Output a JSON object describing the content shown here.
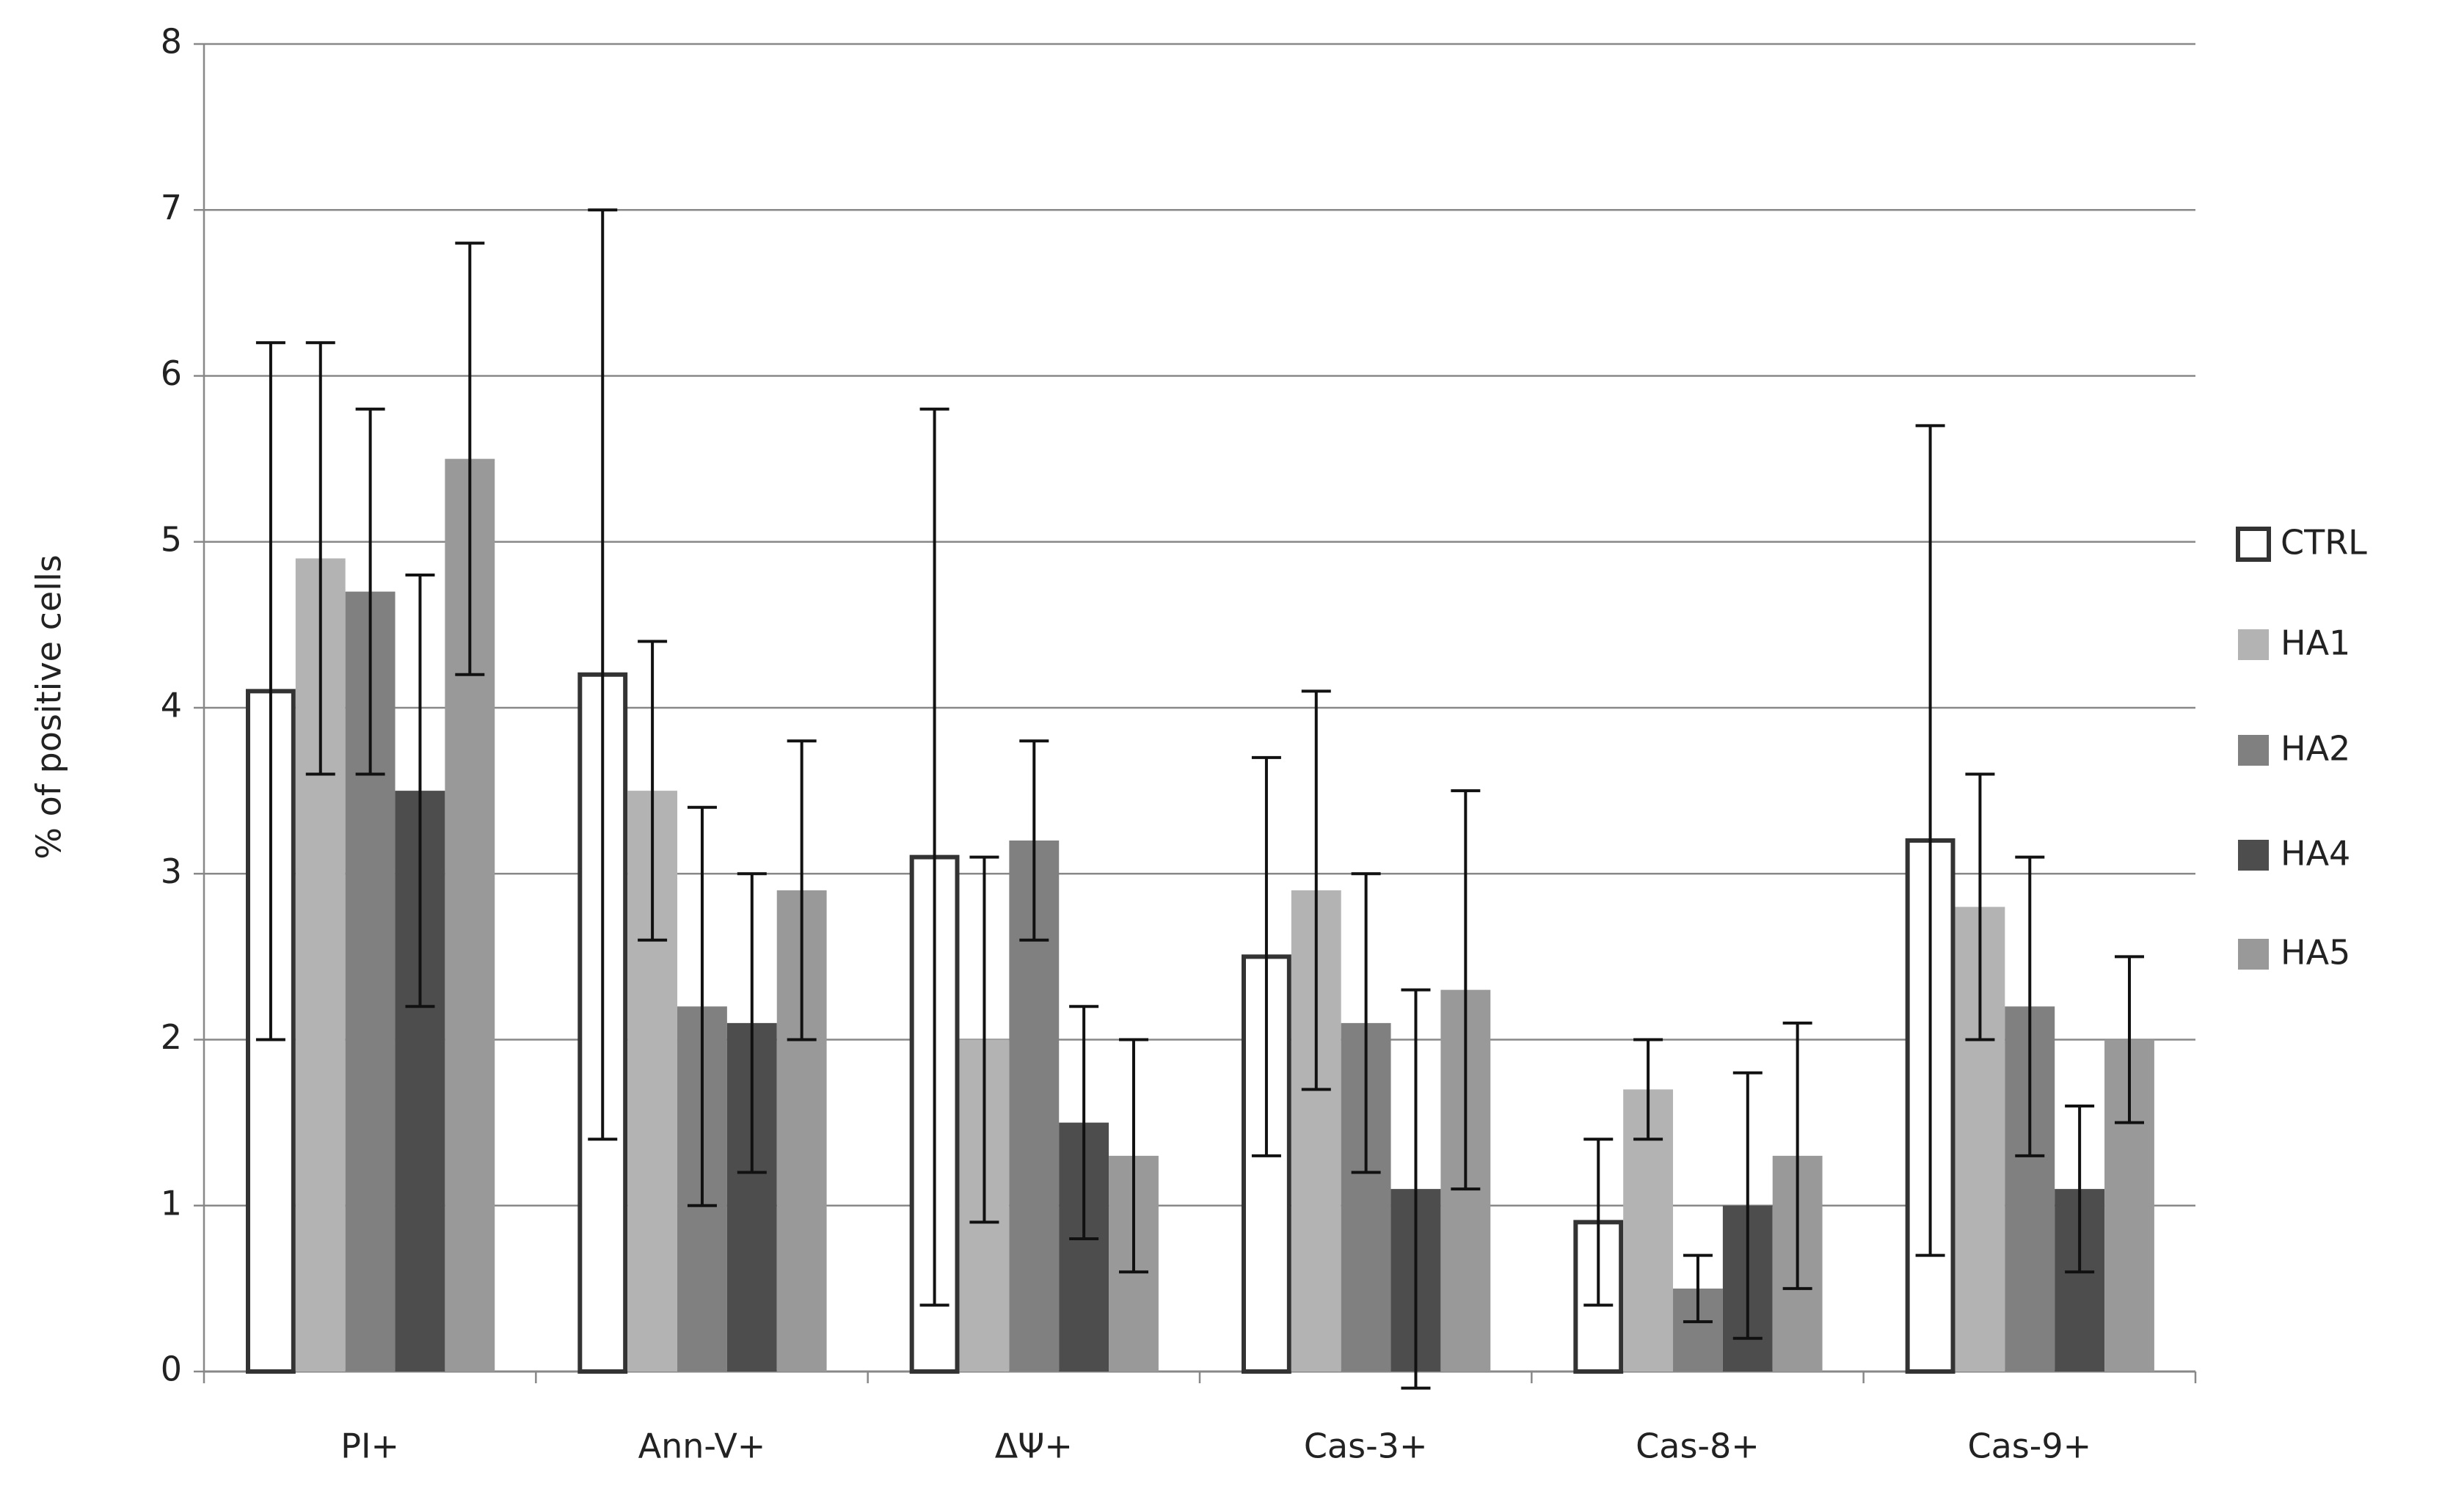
{
  "chart_data": {
    "type": "bar",
    "y_label": "% of positive cells",
    "categories": [
      "PI+",
      "Ann-V+",
      "ΔΨ+",
      "Cas-3+",
      "Cas-8+",
      "Cas-9+"
    ],
    "series": [
      {
        "name": "CTRL",
        "color": "#ffffff",
        "values": [
          4.1,
          4.2,
          3.1,
          2.5,
          0.9,
          3.2
        ],
        "errors": [
          2.1,
          2.8,
          2.7,
          1.2,
          0.5,
          2.5
        ]
      },
      {
        "name": "HA1",
        "color": "#b3b3b3",
        "values": [
          4.9,
          3.5,
          2.0,
          2.9,
          1.7,
          2.8
        ],
        "errors": [
          1.3,
          0.9,
          1.1,
          1.2,
          0.3,
          0.8
        ]
      },
      {
        "name": "HA2",
        "color": "#808080",
        "values": [
          4.7,
          2.2,
          3.2,
          2.1,
          0.5,
          2.2
        ],
        "errors": [
          1.1,
          1.2,
          0.6,
          0.9,
          0.2,
          0.9
        ]
      },
      {
        "name": "HA4",
        "color": "#4d4d4d",
        "values": [
          3.5,
          2.1,
          1.5,
          1.1,
          1.0,
          1.1
        ],
        "errors": [
          1.3,
          0.9,
          0.7,
          1.2,
          0.8,
          0.5
        ]
      },
      {
        "name": "HA5",
        "color": "#999999",
        "values": [
          5.5,
          2.9,
          1.3,
          2.3,
          1.3,
          2.0
        ],
        "errors": [
          1.3,
          0.9,
          0.7,
          1.2,
          0.8,
          0.5
        ]
      }
    ],
    "ylim": [
      0,
      8
    ],
    "yticks": [
      0,
      1,
      2,
      3,
      4,
      5,
      6,
      7,
      8
    ],
    "grid": true,
    "legend": "right"
  }
}
